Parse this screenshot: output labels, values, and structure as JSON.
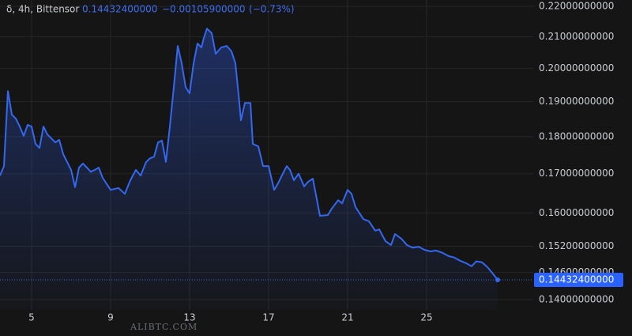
{
  "chart_data": {
    "type": "line",
    "symbol": "δ, 4h, Bittensor",
    "price": "0.14432400000",
    "change": "−0.00105900000",
    "change_pct": "(−0.73%)",
    "watermark": "ALIBTC.COM",
    "log_scale": true,
    "grid": true,
    "x": [
      3.4,
      3.6,
      3.8,
      4.0,
      4.2,
      4.4,
      4.6,
      4.8,
      5.0,
      5.2,
      5.4,
      5.6,
      5.8,
      6.0,
      6.2,
      6.4,
      6.6,
      6.8,
      7.0,
      7.2,
      7.4,
      7.6,
      7.8,
      8.0,
      8.2,
      8.4,
      8.6,
      9.0,
      9.4,
      9.72,
      10.0,
      10.28,
      10.52,
      10.8,
      11.0,
      11.2,
      11.4,
      11.6,
      11.8,
      12.0,
      12.2,
      12.4,
      12.6,
      12.8,
      13.0,
      13.2,
      13.4,
      13.6,
      13.72,
      13.88,
      14.12,
      14.32,
      14.6,
      14.88,
      15.12,
      15.32,
      15.48,
      15.6,
      15.8,
      16.08,
      16.2,
      16.48,
      16.72,
      17.0,
      17.28,
      17.48,
      17.72,
      17.92,
      18.08,
      18.28,
      18.52,
      18.8,
      19.0,
      19.24,
      19.6,
      20.0,
      20.2,
      20.52,
      20.72,
      21.0,
      21.2,
      21.4,
      21.8,
      22.08,
      22.4,
      22.6,
      22.92,
      23.2,
      23.4,
      23.72,
      24.0,
      24.28,
      24.6,
      24.88,
      25.2,
      25.48,
      25.8,
      26.12,
      26.4,
      26.72,
      27.0,
      27.28,
      27.52,
      27.8,
      28.08,
      28.32,
      28.6
    ],
    "series": [
      {
        "name": "Bittensor",
        "color": "#3468f0",
        "values": [
          0.1695,
          0.172,
          0.1931,
          0.1862,
          0.1851,
          0.1828,
          0.1802,
          0.1833,
          0.1828,
          0.178,
          0.1769,
          0.1828,
          0.1806,
          0.1795,
          0.1784,
          0.1791,
          0.1752,
          0.1731,
          0.171,
          0.1665,
          0.1716,
          0.1727,
          0.1716,
          0.1705,
          0.171,
          0.1716,
          0.1689,
          0.1658,
          0.1663,
          0.1648,
          0.1683,
          0.171,
          0.1695,
          0.1731,
          0.1741,
          0.1745,
          0.1784,
          0.1789,
          0.1731,
          0.1828,
          0.1943,
          0.207,
          0.2015,
          0.1943,
          0.1924,
          0.2015,
          0.2078,
          0.2065,
          0.2096,
          0.2126,
          0.2111,
          0.2045,
          0.2065,
          0.207,
          0.2053,
          0.2015,
          0.192,
          0.1846,
          0.1896,
          0.1896,
          0.178,
          0.1773,
          0.172,
          0.172,
          0.1658,
          0.1675,
          0.17,
          0.172,
          0.171,
          0.1683,
          0.17,
          0.1667,
          0.1679,
          0.1687,
          0.1593,
          0.1595,
          0.1611,
          0.1632,
          0.1624,
          0.1658,
          0.1648,
          0.1615,
          0.1585,
          0.158,
          0.1557,
          0.156,
          0.1532,
          0.1523,
          0.1549,
          0.1538,
          0.1523,
          0.1517,
          0.1519,
          0.1512,
          0.1508,
          0.151,
          0.1505,
          0.1497,
          0.1494,
          0.1486,
          0.1481,
          0.1474,
          0.1485,
          0.1483,
          0.1472,
          0.1459,
          0.144324
        ]
      }
    ],
    "xlim": [
      3.4,
      30.4
    ],
    "xticks": [
      5,
      9,
      13,
      17,
      21,
      25
    ],
    "ylim": [
      0.1378,
      0.2222
    ],
    "yticks": [
      {
        "value": 0.22,
        "label": "0.22000000000"
      },
      {
        "value": 0.21,
        "label": "0.21000000000"
      },
      {
        "value": 0.2,
        "label": "0.20000000000"
      },
      {
        "value": 0.19,
        "label": "0.19000000000"
      },
      {
        "value": 0.18,
        "label": "0.18000000000"
      },
      {
        "value": 0.17,
        "label": "0.17000000000"
      },
      {
        "value": 0.16,
        "label": "0.16000000000"
      },
      {
        "value": 0.152,
        "label": "0.15200000000"
      },
      {
        "value": 0.146,
        "label": "0.14600000000"
      },
      {
        "value": 0.14,
        "label": "0.14000000000"
      }
    ]
  }
}
